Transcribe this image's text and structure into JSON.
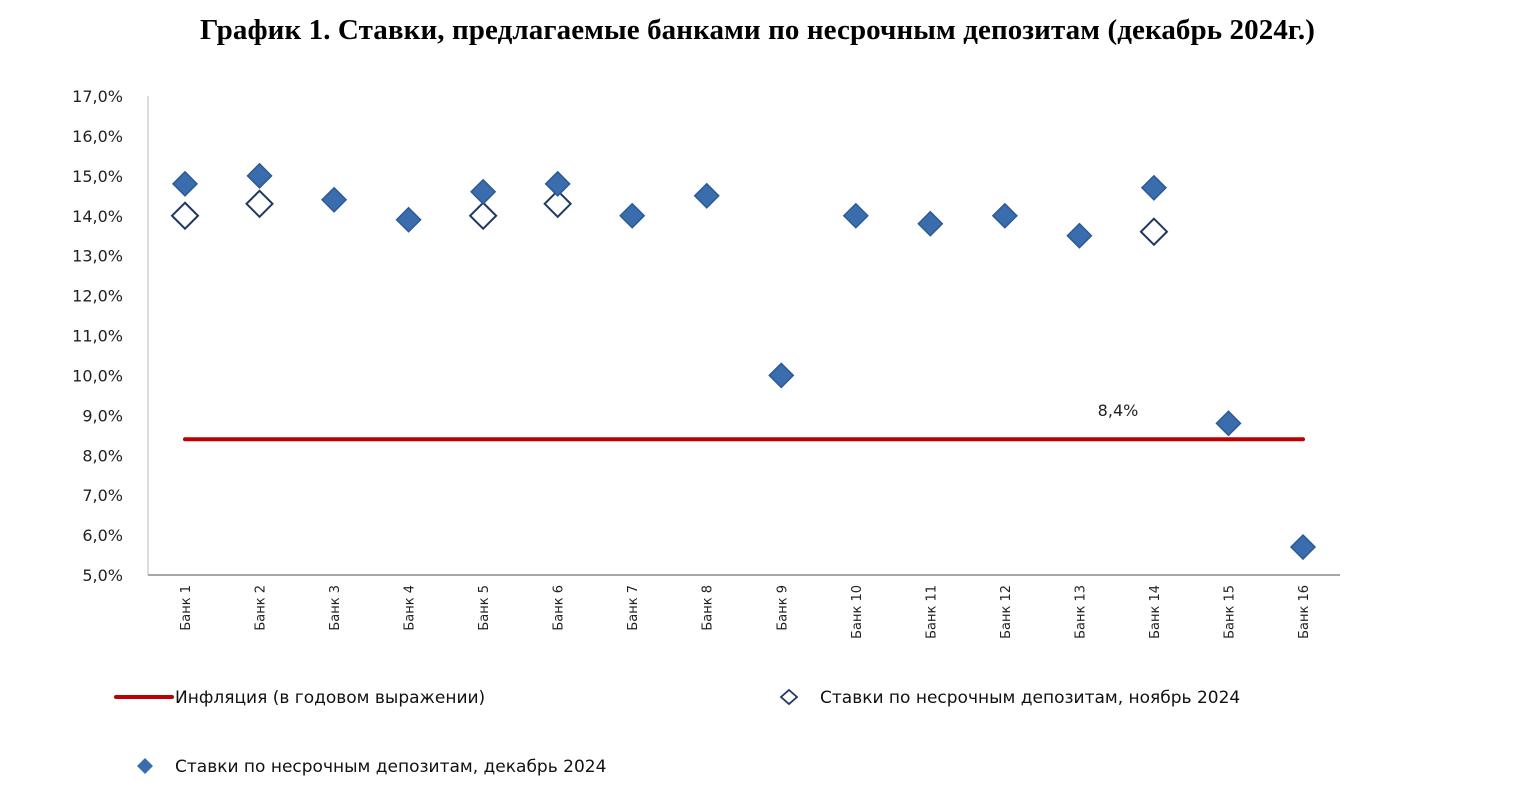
{
  "title": "График 1. Ставки, предлагаемые банками по несрочным депозитам (декабрь 2024г.)",
  "chart_data": {
    "type": "scatter",
    "title": "График 1. Ставки, предлагаемые банками по несрочным депозитам (декабрь 2024г.)",
    "xlabel": "",
    "ylabel": "",
    "ylim": [
      5.0,
      17.0
    ],
    "y_tick_step": 1.0,
    "y_tick_labels": [
      "5,0%",
      "6,0%",
      "7,0%",
      "8,0%",
      "9,0%",
      "10,0%",
      "11,0%",
      "12,0%",
      "13,0%",
      "14,0%",
      "15,0%",
      "16,0%",
      "17,0%"
    ],
    "grid": false,
    "legend_position": "bottom",
    "categories": [
      "Банк 1",
      "Банк 2",
      "Банк 3",
      "Банк 4",
      "Банк 5",
      "Банк 6",
      "Банк 7",
      "Банк 8",
      "Банк 9",
      "Банк 10",
      "Банк 11",
      "Банк 12",
      "Банк 13",
      "Банк 14",
      "Банк 15",
      "Банк 16"
    ],
    "series": [
      {
        "name": "Инфляция (в годовом выражении)",
        "type": "line",
        "color": "#C00000",
        "values": [
          8.4,
          8.4,
          8.4,
          8.4,
          8.4,
          8.4,
          8.4,
          8.4,
          8.4,
          8.4,
          8.4,
          8.4,
          8.4,
          8.4,
          8.4,
          8.4
        ]
      },
      {
        "name": "Ставки по несрочным депозитам, ноябрь 2024",
        "type": "scatter",
        "marker": "hollow-diamond",
        "color": "#1F3864",
        "values": [
          14.0,
          14.3,
          null,
          null,
          14.0,
          14.3,
          null,
          null,
          null,
          null,
          null,
          null,
          null,
          13.6,
          null,
          null
        ]
      },
      {
        "name": "Ставки по несрочным депозитам, декабрь 2024",
        "type": "scatter",
        "marker": "filled-diamond",
        "color": "#3A6DAE",
        "values": [
          14.8,
          15.0,
          14.4,
          13.9,
          14.6,
          14.8,
          14.0,
          14.5,
          10.0,
          14.0,
          13.8,
          14.0,
          13.5,
          14.7,
          8.8,
          5.7
        ]
      }
    ],
    "annotations": [
      {
        "text": "8,4%",
        "series": "Инфляция (в годовом выражении)",
        "value": 8.4
      }
    ]
  },
  "legend": {
    "items": [
      {
        "label": "Инфляция (в годовом выражении)",
        "marker": "line",
        "color": "#C00000"
      },
      {
        "label": "Ставки по несрочным депозитам, ноябрь 2024",
        "marker": "hollow-diamond",
        "color": "#1F3864"
      },
      {
        "label": "Ставки по несрочным депозитам, декабрь 2024",
        "marker": "filled-diamond",
        "color": "#3A6DAE"
      }
    ]
  },
  "colors": {
    "inflation": "#C00000",
    "december": "#3A6DAE",
    "december_stroke": "#2E5A94",
    "november_stroke": "#1F3864",
    "axis": "#A6A6A6"
  }
}
